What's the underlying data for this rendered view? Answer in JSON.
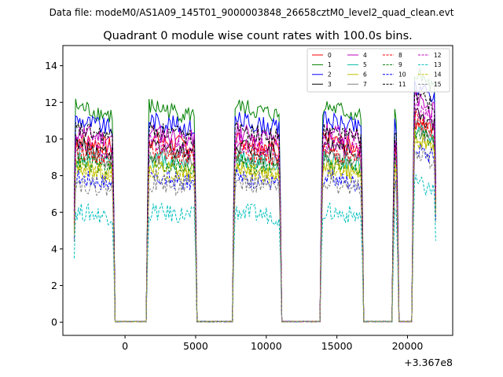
{
  "chart_data": {
    "type": "line",
    "suptitle": "Data file: modeM0/AS1A09_145T01_9000003848_26658cztM0_level2_quad_clean.evt",
    "title": "Quadrant 0 module wise count rates with 100.0s bins.",
    "xlabel": "",
    "ylabel": "",
    "x_offset_label": "+3.367e8",
    "xlim": [
      -4400,
      23200
    ],
    "ylim": [
      -0.72,
      15.1
    ],
    "xticks": [
      0,
      5000,
      10000,
      15000,
      20000
    ],
    "yticks": [
      0,
      2,
      4,
      6,
      8,
      10,
      12,
      14
    ],
    "active_segments": [
      [
        -3600,
        -800
      ],
      [
        1600,
        5000
      ],
      [
        7700,
        11000
      ],
      [
        13900,
        16800
      ],
      [
        19000,
        19300
      ],
      [
        20400,
        22000
      ]
    ],
    "legend": {
      "location": "upper right",
      "ncol": 4
    },
    "series": [
      {
        "name": "0",
        "color": "#ff0000",
        "dash": "solid",
        "level": 9.6,
        "final_level": 10.7
      },
      {
        "name": "1",
        "color": "#008000",
        "dash": "solid",
        "level": 11.3,
        "final_level": 13.2
      },
      {
        "name": "2",
        "color": "#0000ff",
        "dash": "solid",
        "level": 10.6,
        "final_level": 12.6
      },
      {
        "name": "3",
        "color": "#000000",
        "dash": "solid",
        "level": 9.3,
        "final_level": 11.1
      },
      {
        "name": "4",
        "color": "#bf00bf",
        "dash": "solid",
        "level": 10.0,
        "final_level": 11.9
      },
      {
        "name": "5",
        "color": "#00bfa0",
        "dash": "solid",
        "level": 8.6,
        "final_level": 10.3
      },
      {
        "name": "6",
        "color": "#bfbf00",
        "dash": "solid",
        "level": 8.2,
        "final_level": 10.0
      },
      {
        "name": "7",
        "color": "#808080",
        "dash": "solid",
        "level": 8.8,
        "final_level": 10.4
      },
      {
        "name": "8",
        "color": "#ff0000",
        "dash": "dashed",
        "level": 9.0,
        "final_level": 10.9
      },
      {
        "name": "9",
        "color": "#008000",
        "dash": "dashed",
        "level": 8.4,
        "final_level": 10.2
      },
      {
        "name": "10",
        "color": "#0000ff",
        "dash": "dashed",
        "level": 7.6,
        "final_level": 9.3
      },
      {
        "name": "11",
        "color": "#000000",
        "dash": "dashed",
        "level": 10.1,
        "final_level": 12.2
      },
      {
        "name": "12",
        "color": "#bf00bf",
        "dash": "dashed",
        "level": 9.4,
        "final_level": 11.4
      },
      {
        "name": "13",
        "color": "#00bfbf",
        "dash": "dashed",
        "level": 5.8,
        "final_level": 7.4
      },
      {
        "name": "14",
        "color": "#bfbf00",
        "dash": "dashed",
        "level": 8.0,
        "final_level": 9.8
      },
      {
        "name": "15",
        "color": "#808080",
        "dash": "dashed",
        "level": 7.3,
        "final_level": 9.1
      }
    ]
  }
}
